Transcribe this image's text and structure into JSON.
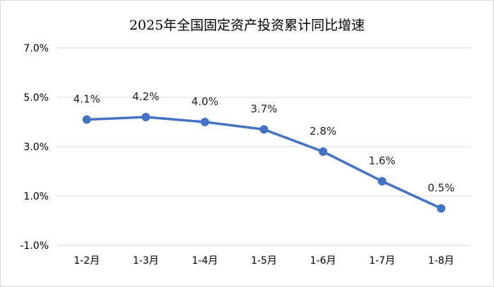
{
  "chart_data": {
    "type": "line",
    "title": "2025年全国固定资产投资累计同比增速",
    "categories": [
      "1-2月",
      "1-3月",
      "1-4月",
      "1-5月",
      "1-6月",
      "1-7月",
      "1-8月"
    ],
    "series": [
      {
        "values": [
          4.1,
          4.2,
          4.0,
          3.7,
          2.8,
          1.6,
          0.5
        ]
      }
    ],
    "data_labels": [
      "4.1%",
      "4.2%",
      "4.0%",
      "3.7%",
      "2.8%",
      "1.6%",
      "0.5%"
    ],
    "y_ticks": [
      -1.0,
      1.0,
      3.0,
      5.0,
      7.0
    ],
    "y_tick_labels": [
      "-1.0%",
      "1.0%",
      "3.0%",
      "5.0%",
      "7.0%"
    ],
    "ylim": [
      -1.0,
      7.0
    ],
    "grid": true,
    "legend": "none",
    "line_color": "#4472C4",
    "grid_color": "#d9d9d9"
  }
}
